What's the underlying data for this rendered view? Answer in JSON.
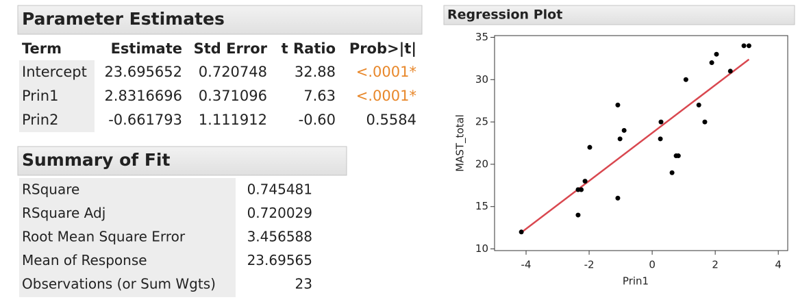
{
  "parameter_estimates": {
    "title": "Parameter Estimates",
    "columns": [
      "Term",
      "Estimate",
      "Std Error",
      "t Ratio",
      "Prob>|t|"
    ],
    "rows": [
      [
        "Intercept",
        "23.695652",
        "0.720748",
        "32.88",
        "<.0001*"
      ],
      [
        "Prin1",
        "2.8316696",
        "0.371096",
        "7.63",
        "<.0001*"
      ],
      [
        "Prin2",
        "-0.661793",
        "1.111912",
        "-0.60",
        "0.5584"
      ]
    ],
    "significant_color": "#e8872a"
  },
  "summary_of_fit": {
    "title": "Summary of Fit",
    "rows": [
      [
        "RSquare",
        "0.745481"
      ],
      [
        "RSquare Adj",
        "0.720029"
      ],
      [
        "Root Mean Square Error",
        "3.456588"
      ],
      [
        "Mean of Response",
        "23.69565"
      ],
      [
        "Observations (or Sum Wgts)",
        "23"
      ]
    ]
  },
  "chart_data": {
    "type": "scatter",
    "title": "Regression Plot",
    "x_label": "Prin1",
    "y_label": "MAST_total",
    "x": [
      -4.15,
      -2.35,
      -2.25,
      -2.13,
      -2.35,
      -1.98,
      -1.09,
      -1.02,
      -0.89,
      -1.09,
      0.28,
      0.26,
      0.63,
      0.76,
      0.83,
      1.07,
      1.48,
      1.67,
      1.89,
      2.04,
      2.48,
      2.91,
      3.07
    ],
    "y": [
      12,
      17,
      17,
      18,
      14,
      22,
      27,
      23,
      24,
      16,
      25,
      23,
      19,
      21,
      21,
      30,
      27,
      25,
      32,
      33,
      31,
      34,
      34
    ],
    "color": "#000000",
    "fit_color": "#d9474f",
    "xlim": [
      -5,
      4.3
    ],
    "ylim": [
      9.8,
      35.2
    ],
    "xticks": [
      -4,
      -2,
      0,
      2,
      4
    ],
    "yticks": [
      10,
      15,
      20,
      25,
      30,
      35
    ]
  }
}
